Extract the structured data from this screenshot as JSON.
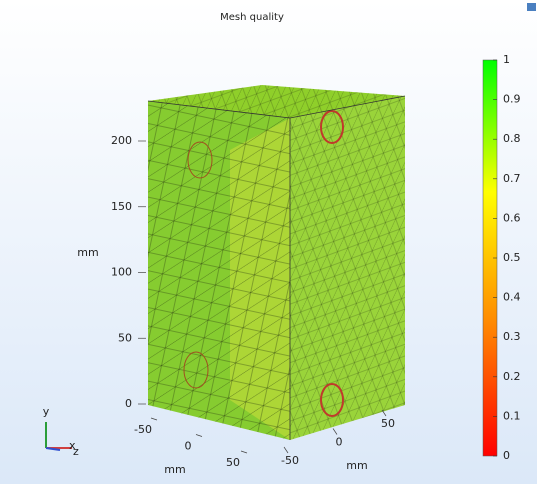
{
  "chart_data": {
    "type": "mesh",
    "title": "Mesh quality",
    "y_axis": {
      "label": "mm",
      "lim": [
        0,
        200
      ],
      "ticks": [
        0,
        50,
        100,
        150,
        200
      ]
    },
    "x_axis": {
      "label": "mm",
      "lim": [
        -50,
        50
      ],
      "ticks": [
        -50,
        0,
        50
      ]
    },
    "z_axis": {
      "label": "mm",
      "lim": [
        -50,
        50
      ],
      "ticks": [
        -50,
        0,
        50
      ]
    },
    "colorbar": {
      "lim": [
        0,
        1
      ],
      "ticks": [
        0,
        0.1,
        0.2,
        0.3,
        0.4,
        0.5,
        0.6,
        0.7,
        0.8,
        0.9,
        1
      ],
      "colors": [
        "#ff0000",
        "#ff8800",
        "#ffff00",
        "#00ff00"
      ]
    },
    "triad": {
      "x": "x",
      "y": "y",
      "z": "z"
    }
  }
}
